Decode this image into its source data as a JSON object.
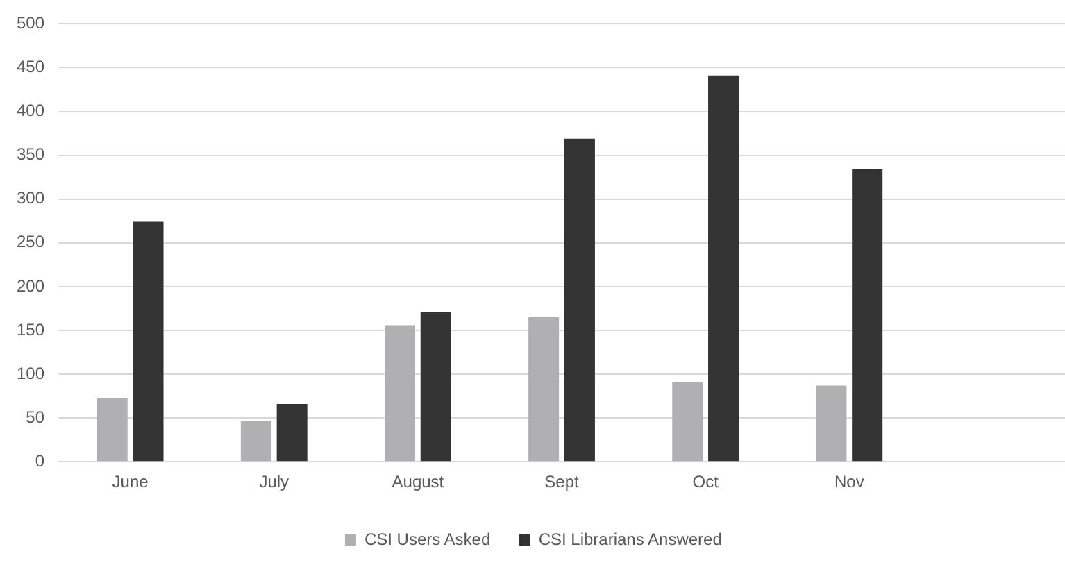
{
  "chart_data": {
    "type": "bar",
    "categories": [
      "June",
      "July",
      "August",
      "Sept",
      "Oct",
      "Nov",
      null
    ],
    "series": [
      {
        "name": "CSI Users Asked",
        "color": "#b0b0b2",
        "values": [
          73,
          47,
          156,
          165,
          91,
          87,
          null
        ]
      },
      {
        "name": "CSI Librarians Answered",
        "color": "#333333",
        "values": [
          274,
          66,
          171,
          369,
          441,
          334,
          null
        ]
      }
    ],
    "ylim": [
      0,
      500
    ],
    "yticks": [
      0,
      50,
      100,
      150,
      200,
      250,
      300,
      350,
      400,
      450,
      500
    ],
    "grid": "y",
    "legend": "bottom"
  }
}
